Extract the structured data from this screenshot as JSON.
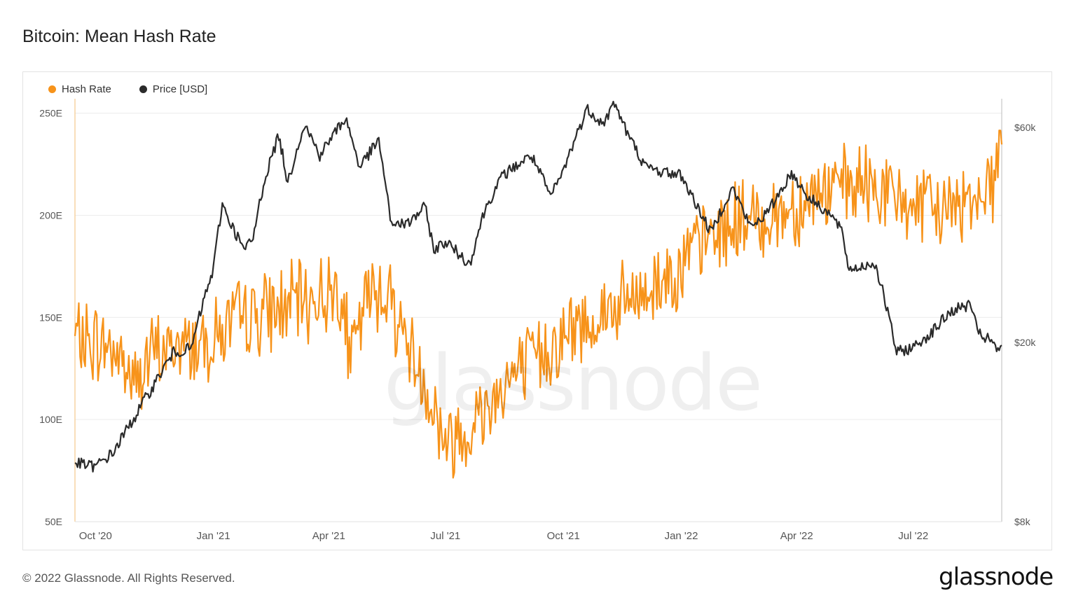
{
  "title": "Bitcoin: Mean Hash Rate",
  "footer": {
    "copyright": "© 2022 Glassnode. All Rights Reserved.",
    "logo": "glassnode"
  },
  "watermark": "glassnode",
  "colors": {
    "hash": "#f7931a",
    "price": "#2b2b2b",
    "grid": "#ececec"
  },
  "chart_data": {
    "type": "line",
    "title": "Bitcoin: Mean Hash Rate",
    "x_range": [
      "2020-09-15",
      "2022-09-08"
    ],
    "x_ticks": [
      {
        "label": "Oct '20",
        "date": "2020-10-01"
      },
      {
        "label": "Jan '21",
        "date": "2021-01-01"
      },
      {
        "label": "Apr '21",
        "date": "2021-04-01"
      },
      {
        "label": "Jul '21",
        "date": "2021-07-01"
      },
      {
        "label": "Oct '21",
        "date": "2021-10-01"
      },
      {
        "label": "Jan '22",
        "date": "2022-01-01"
      },
      {
        "label": "Apr '22",
        "date": "2022-04-01"
      },
      {
        "label": "Jul '22",
        "date": "2022-07-01"
      }
    ],
    "y_left": {
      "ticks": [
        "50E",
        "100E",
        "150E",
        "200E",
        "250E"
      ],
      "values": [
        50,
        100,
        150,
        200,
        250
      ],
      "range": [
        50,
        255
      ]
    },
    "y_right": {
      "scale": "log",
      "ticks": [
        "$8k",
        "$20k",
        "$60k"
      ],
      "values": [
        8000,
        20000,
        60000
      ],
      "range": [
        8000,
        68000
      ]
    },
    "grid": true,
    "legend": "top-left",
    "series": [
      {
        "name": "Hash Rate",
        "axis": "left",
        "color": "#f7931a",
        "points": [
          [
            "2020-09-15",
            140
          ],
          [
            "2020-10-01",
            137
          ],
          [
            "2020-10-15",
            135
          ],
          [
            "2020-11-01",
            118
          ],
          [
            "2020-11-15",
            132
          ],
          [
            "2020-12-01",
            135
          ],
          [
            "2020-12-15",
            137
          ],
          [
            "2021-01-01",
            140
          ],
          [
            "2021-01-15",
            147
          ],
          [
            "2021-02-01",
            151
          ],
          [
            "2021-02-15",
            153
          ],
          [
            "2021-03-01",
            156
          ],
          [
            "2021-03-15",
            158
          ],
          [
            "2021-04-01",
            162
          ],
          [
            "2021-04-10",
            166
          ],
          [
            "2021-04-18",
            128
          ],
          [
            "2021-05-01",
            160
          ],
          [
            "2021-05-15",
            165
          ],
          [
            "2021-06-01",
            138
          ],
          [
            "2021-06-15",
            118
          ],
          [
            "2021-06-25",
            100
          ],
          [
            "2021-07-01",
            88
          ],
          [
            "2021-07-15",
            94
          ],
          [
            "2021-08-01",
            105
          ],
          [
            "2021-08-15",
            118
          ],
          [
            "2021-09-01",
            125
          ],
          [
            "2021-09-15",
            133
          ],
          [
            "2021-10-01",
            140
          ],
          [
            "2021-10-15",
            146
          ],
          [
            "2021-11-01",
            152
          ],
          [
            "2021-11-15",
            156
          ],
          [
            "2021-12-01",
            160
          ],
          [
            "2021-12-15",
            168
          ],
          [
            "2022-01-01",
            175
          ],
          [
            "2022-01-15",
            185
          ],
          [
            "2022-02-01",
            192
          ],
          [
            "2022-02-15",
            198
          ],
          [
            "2022-03-01",
            197
          ],
          [
            "2022-03-15",
            200
          ],
          [
            "2022-04-01",
            205
          ],
          [
            "2022-04-15",
            210
          ],
          [
            "2022-05-01",
            213
          ],
          [
            "2022-05-15",
            213
          ],
          [
            "2022-06-01",
            215
          ],
          [
            "2022-06-15",
            208
          ],
          [
            "2022-07-01",
            205
          ],
          [
            "2022-07-15",
            202
          ],
          [
            "2022-08-01",
            204
          ],
          [
            "2022-08-15",
            210
          ],
          [
            "2022-09-01",
            216
          ],
          [
            "2022-09-08",
            242
          ]
        ]
      },
      {
        "name": "Price [USD]",
        "axis": "right",
        "color": "#2b2b2b",
        "points": [
          [
            "2020-09-15",
            10800
          ],
          [
            "2020-10-01",
            10600
          ],
          [
            "2020-10-15",
            11400
          ],
          [
            "2020-11-01",
            13700
          ],
          [
            "2020-11-15",
            16000
          ],
          [
            "2020-12-01",
            19000
          ],
          [
            "2020-12-15",
            19400
          ],
          [
            "2021-01-01",
            29000
          ],
          [
            "2021-01-08",
            40500
          ],
          [
            "2021-01-15",
            36500
          ],
          [
            "2021-01-25",
            32000
          ],
          [
            "2021-02-01",
            34000
          ],
          [
            "2021-02-10",
            46000
          ],
          [
            "2021-02-21",
            57500
          ],
          [
            "2021-02-28",
            45000
          ],
          [
            "2021-03-13",
            61000
          ],
          [
            "2021-03-25",
            52000
          ],
          [
            "2021-04-14",
            63000
          ],
          [
            "2021-04-25",
            49000
          ],
          [
            "2021-05-10",
            56000
          ],
          [
            "2021-05-19",
            37000
          ],
          [
            "2021-06-01",
            36500
          ],
          [
            "2021-06-15",
            40000
          ],
          [
            "2021-06-22",
            32000
          ],
          [
            "2021-07-01",
            33500
          ],
          [
            "2021-07-20",
            29800
          ],
          [
            "2021-08-01",
            39500
          ],
          [
            "2021-08-15",
            47000
          ],
          [
            "2021-09-06",
            52000
          ],
          [
            "2021-09-21",
            42000
          ],
          [
            "2021-10-01",
            48000
          ],
          [
            "2021-10-20",
            66000
          ],
          [
            "2021-11-01",
            61000
          ],
          [
            "2021-11-10",
            68000
          ],
          [
            "2021-11-20",
            58000
          ],
          [
            "2021-12-04",
            49000
          ],
          [
            "2021-12-15",
            48000
          ],
          [
            "2022-01-01",
            47000
          ],
          [
            "2022-01-10",
            41800
          ],
          [
            "2022-01-24",
            35000
          ],
          [
            "2022-02-10",
            44000
          ],
          [
            "2022-02-24",
            36000
          ],
          [
            "2022-03-10",
            39000
          ],
          [
            "2022-03-28",
            47500
          ],
          [
            "2022-04-10",
            42000
          ],
          [
            "2022-04-25",
            39000
          ],
          [
            "2022-05-05",
            36000
          ],
          [
            "2022-05-12",
            29000
          ],
          [
            "2022-06-01",
            30000
          ],
          [
            "2022-06-13",
            22000
          ],
          [
            "2022-06-18",
            19000
          ],
          [
            "2022-07-01",
            19500
          ],
          [
            "2022-07-15",
            21000
          ],
          [
            "2022-07-31",
            23500
          ],
          [
            "2022-08-15",
            24300
          ],
          [
            "2022-08-20",
            21000
          ],
          [
            "2022-09-01",
            20000
          ],
          [
            "2022-09-06",
            18800
          ],
          [
            "2022-09-08",
            19500
          ]
        ]
      }
    ]
  }
}
